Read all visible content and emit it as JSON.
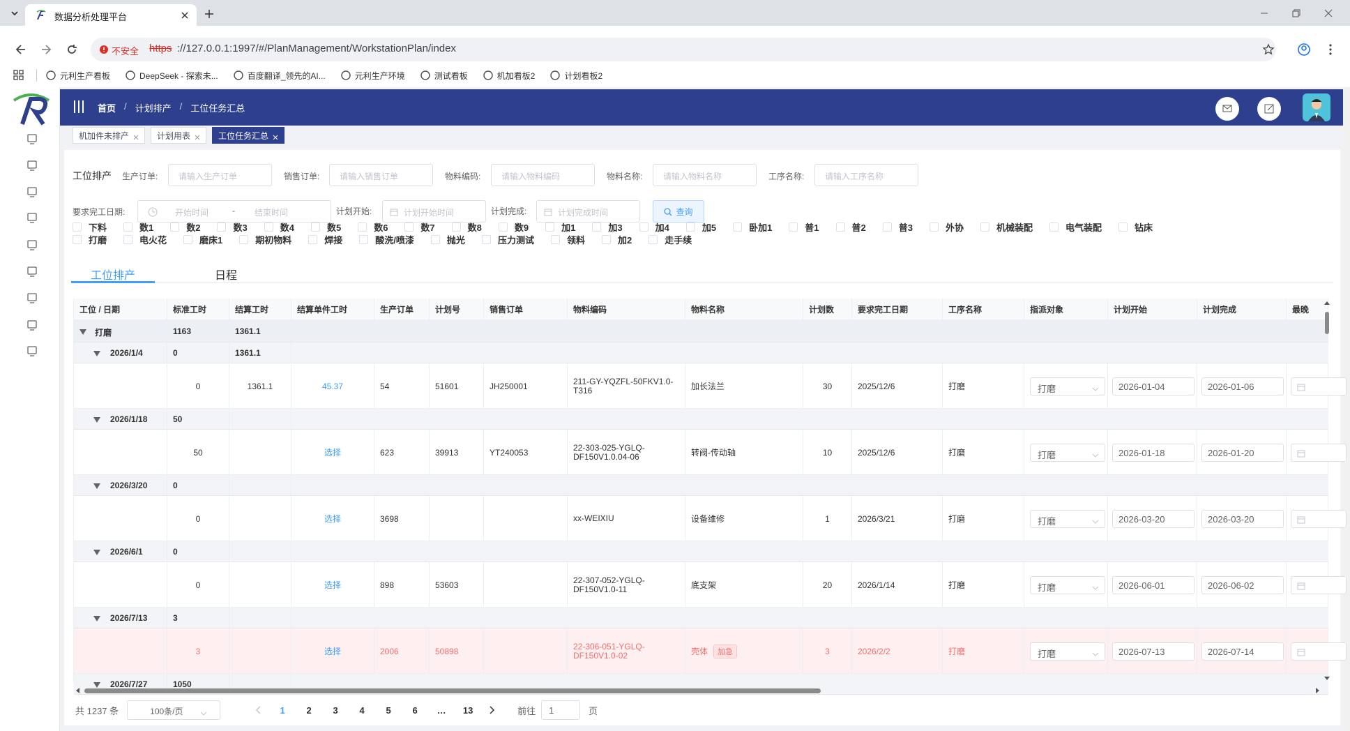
{
  "browser": {
    "tab_title": "数据分析处理平台",
    "security": "不安全",
    "url_scheme": "https",
    "url_rest": "://127.0.0.1:1997/#/PlanManagement/WorkstationPlan/index",
    "bookmarks": [
      "元利生产看板",
      "DeepSeek - 探索未...",
      "百度翻译_领先的AI...",
      "元利生产环境",
      "测试看板",
      "机加看板2",
      "计划看板2"
    ]
  },
  "header": {
    "breadcrumb": [
      "首页",
      "计划排产",
      "工位任务汇总"
    ],
    "separator": "/"
  },
  "tags": [
    "机加件未排产",
    "计划用表",
    "工位任务汇总"
  ],
  "filters": {
    "section": "工位排产",
    "fields": [
      {
        "label": "生产订单:",
        "placeholder": "请输入生产订单"
      },
      {
        "label": "销售订单:",
        "placeholder": "请输入销售订单"
      },
      {
        "label": "物料编码:",
        "placeholder": "请输入物料编码"
      },
      {
        "label": "物料名称:",
        "placeholder": "请输入物料名称"
      },
      {
        "label": "工序名称:",
        "placeholder": "请输入工序名称"
      }
    ],
    "due_label": "要求完工日期:",
    "due_start": "开始时间",
    "due_sep": "-",
    "due_end": "结束时间",
    "plan_start_label": "计划开始:",
    "plan_start_placeholder": "计划开始时间",
    "plan_end_label": "计划完成:",
    "plan_end_placeholder": "计划完成时间",
    "query": "查询"
  },
  "checkboxes": [
    [
      "下料",
      "数1",
      "数2",
      "数3",
      "数4",
      "数5",
      "数6",
      "数7",
      "数8",
      "数9",
      "加1",
      "加3",
      "加4",
      "加5",
      "卧加1",
      "普1",
      "普2",
      "普3",
      "外协",
      "机械装配",
      "电气装配",
      "钻床"
    ],
    [
      "打磨",
      "电火花",
      "磨床1",
      "期初物料",
      "焊接",
      "酸洗/喷漆",
      "抛光",
      "压力测试",
      "领料",
      "加2",
      "走手续"
    ]
  ],
  "tabs": [
    "工位排产",
    "日程"
  ],
  "table": {
    "columns": [
      "工位 / 日期",
      "标准工时",
      "结算工时",
      "结算单件工时",
      "生产订单",
      "计划号",
      "销售订单",
      "物料编码",
      "物料名称",
      "计划数",
      "要求完工日期",
      "工序名称",
      "指派对象",
      "计划开始",
      "计划完成",
      "最晚"
    ],
    "groups": [
      {
        "label": "打磨",
        "std": 1163,
        "settle": 1361.1,
        "dates": [
          {
            "label": "2026/1/4",
            "std": 0,
            "settle": 1361.1,
            "rows": [
              {
                "std": 0,
                "settle": 1361.1,
                "unit": 45.37,
                "order": 54,
                "plan_no": 51601,
                "sales_order": "JH250001",
                "material_code": "211-GY-YQZFL-50FKV1.0-T316",
                "material_name": "加长法兰",
                "qty": 30,
                "due": "2025/12/6",
                "process": "打磨",
                "assignee": "打磨",
                "plan_start": "2026-01-04",
                "plan_end": "2026-01-06"
              }
            ]
          },
          {
            "label": "2026/1/18",
            "std": 50,
            "rows": [
              {
                "std": 50,
                "action": "选择",
                "order": 623,
                "plan_no": 39913,
                "sales_order": "YT240053",
                "material_code": "22-303-025-YGLQ-DF150V1.0.04-06",
                "material_name": "转阀-传动轴",
                "qty": 10,
                "due": "2025/12/6",
                "process": "打磨",
                "assignee": "打磨",
                "plan_start": "2026-01-18",
                "plan_end": "2026-01-20"
              }
            ]
          },
          {
            "label": "2026/3/20",
            "std": 0,
            "rows": [
              {
                "std": 0,
                "action": "选择",
                "order": 3698,
                "material_code": "xx-WEIXIU",
                "material_name": "设备维修",
                "qty": 1,
                "due": "2026/3/21",
                "process": "打磨",
                "assignee": "打磨",
                "plan_start": "2026-03-20",
                "plan_end": "2026-03-20"
              }
            ]
          },
          {
            "label": "2026/6/1",
            "std": 0,
            "rows": [
              {
                "std": 0,
                "action": "选择",
                "order": 898,
                "plan_no": 53603,
                "material_code": "22-307-052-YGLQ-DF150V1.0-11",
                "material_name": "底支架",
                "qty": 20,
                "due": "2026/1/14",
                "process": "打磨",
                "assignee": "打磨",
                "plan_start": "2026-06-01",
                "plan_end": "2026-06-02"
              }
            ]
          },
          {
            "label": "2026/7/13",
            "std": 3,
            "rows": [
              {
                "std": 3,
                "action": "选择",
                "order": 2006,
                "plan_no": 50898,
                "material_code": "22-306-051-YGLQ-DF150V1.0-02",
                "material_name": "壳体",
                "urgent_tag": "加急",
                "qty": 3,
                "due": "2026/2/2",
                "process": "打磨",
                "assignee": "打磨",
                "plan_start": "2026-07-13",
                "plan_end": "2026-07-14"
              }
            ]
          },
          {
            "label": "2026/7/27",
            "std": 1050,
            "rows": []
          }
        ]
      }
    ]
  },
  "pagination": {
    "total": "共 1237 条",
    "page_size": "100条/页",
    "pages": [
      1,
      2,
      3,
      4,
      5,
      6,
      "…",
      13
    ],
    "current_page": 1,
    "goto": "前往",
    "jump_value": 1,
    "page_unit": "页"
  }
}
